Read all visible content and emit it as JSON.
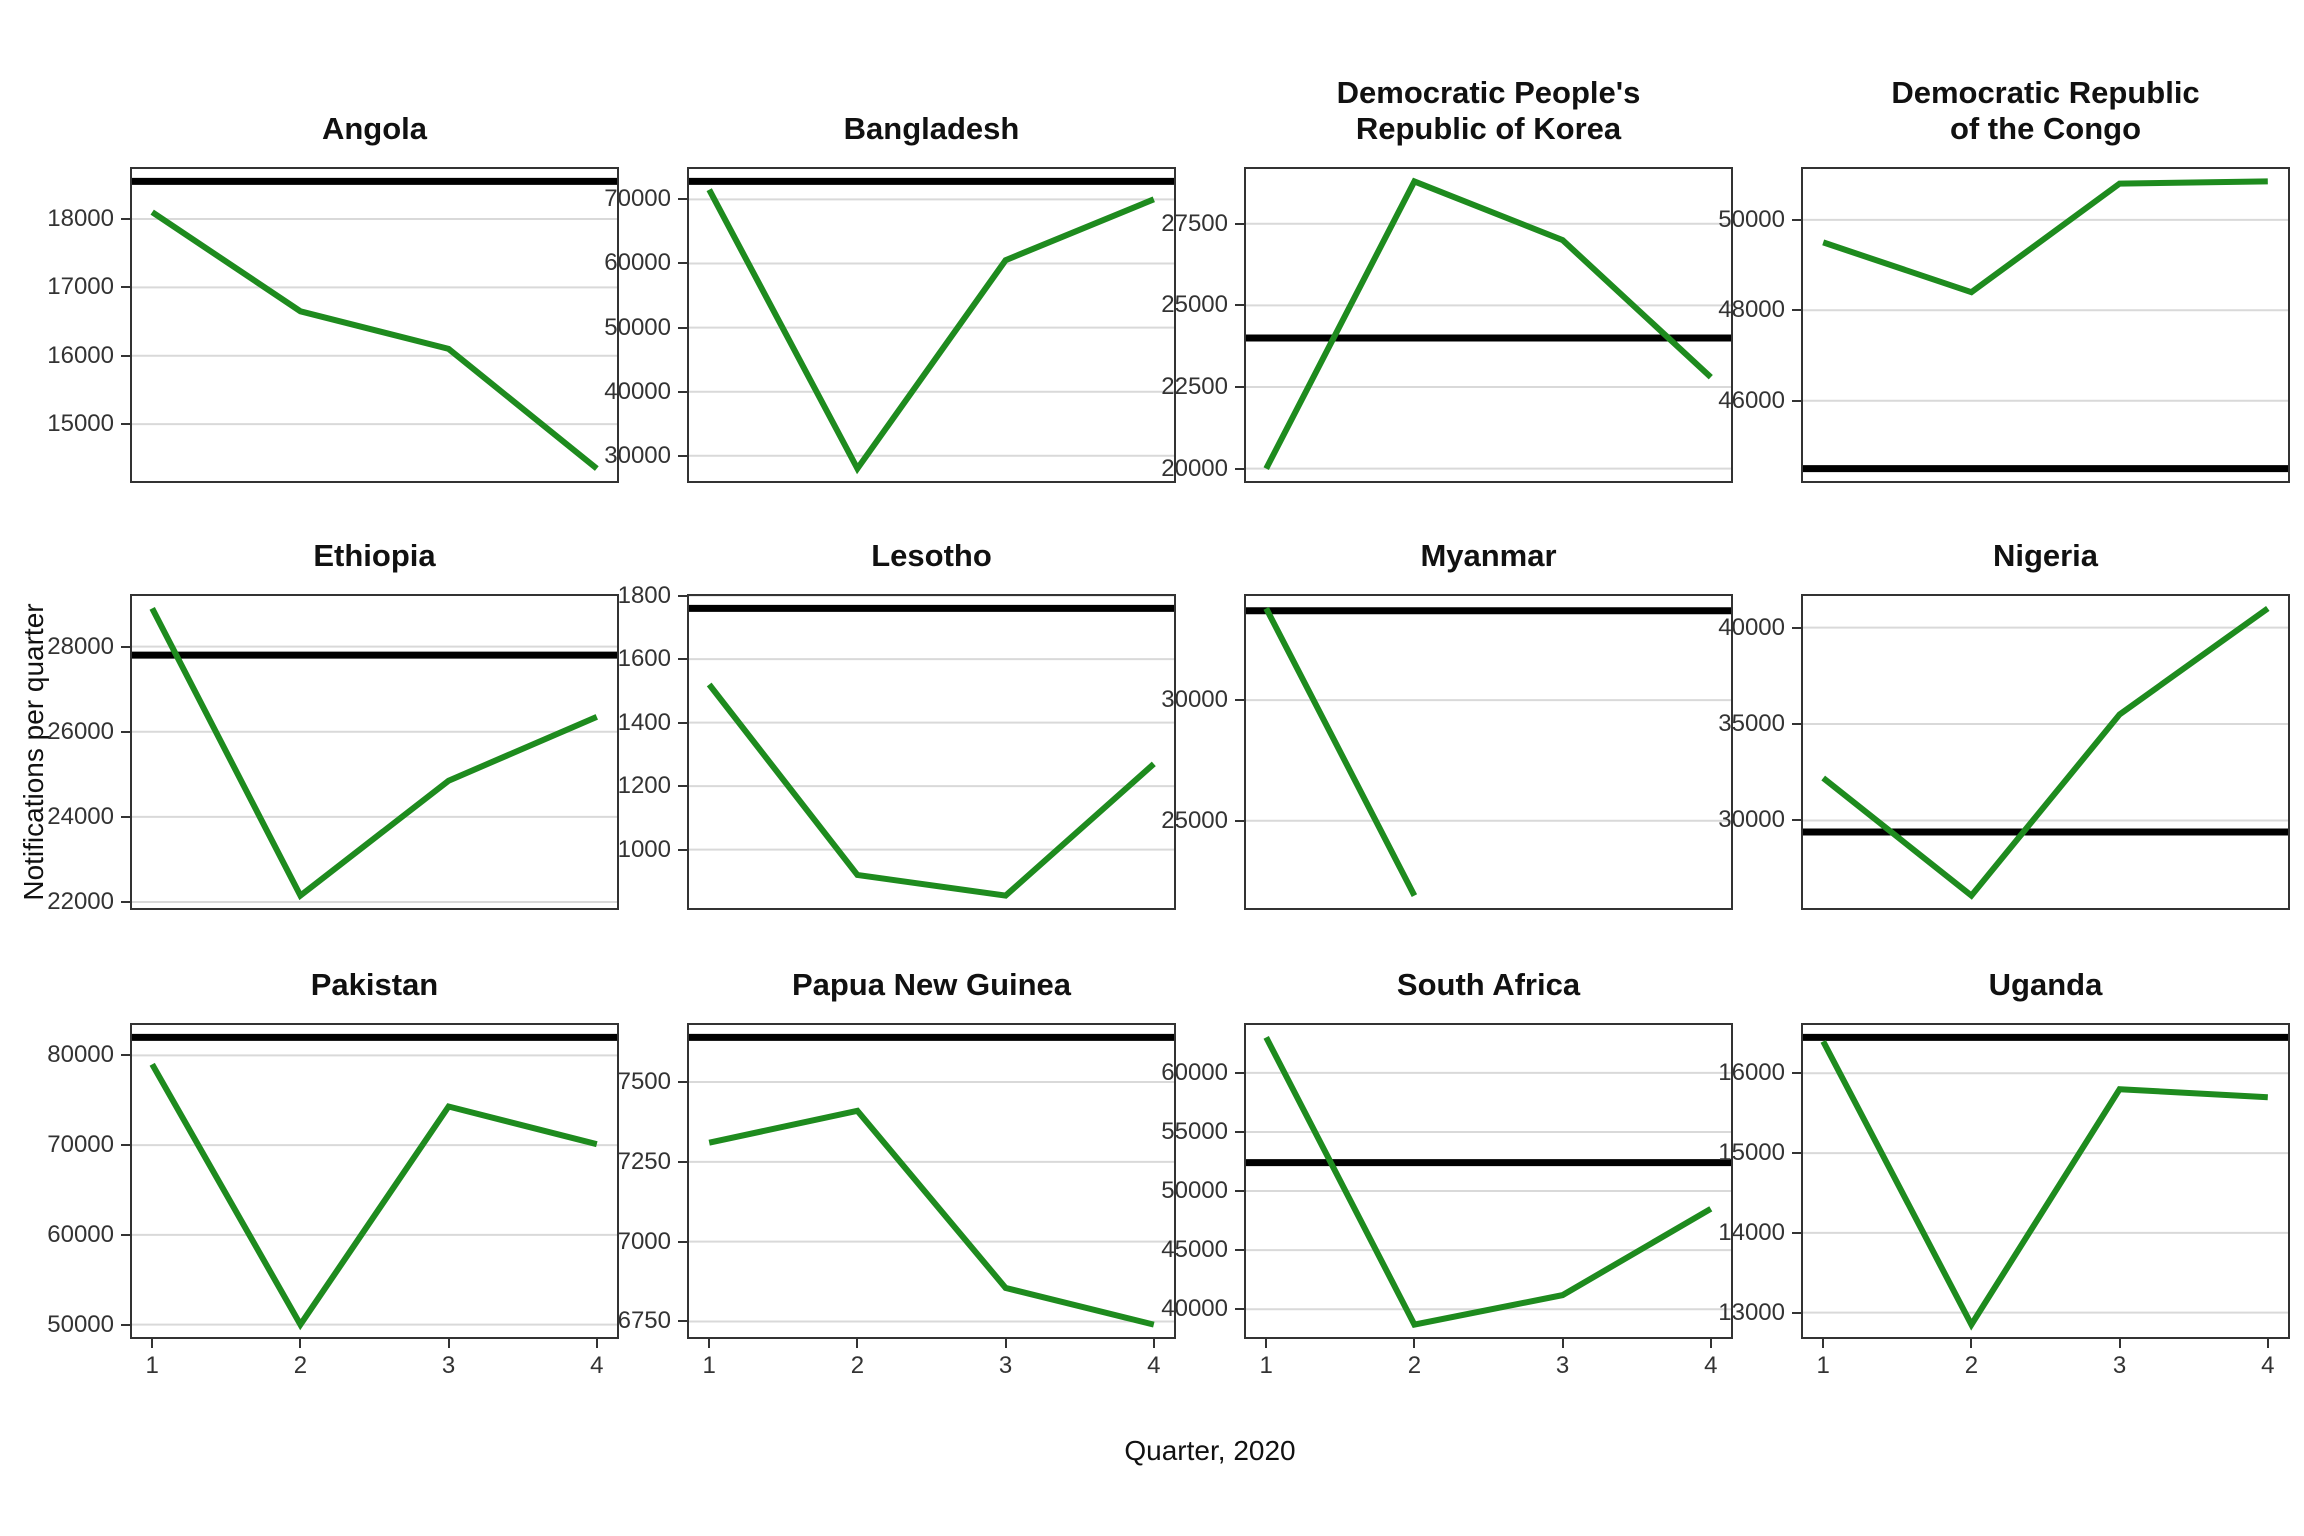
{
  "figure": {
    "y_axis_label": "Notifications per quarter",
    "x_axis_label": "Quarter, 2020",
    "x_tick_labels": [
      "1",
      "2",
      "3",
      "4"
    ],
    "colors": {
      "line": "#1e8b1e",
      "reference": "#000000",
      "grid": "#d9d9d9",
      "border": "#333333",
      "tick_text": "#333333",
      "title_text": "#111111"
    }
  },
  "chart_data": [
    {
      "type": "line",
      "title": "Angola",
      "x": [
        1,
        2,
        3,
        4
      ],
      "values": [
        18100,
        16650,
        16100,
        14350
      ],
      "reference_line": 18550,
      "yticks": [
        15000,
        16000,
        17000,
        18000
      ],
      "xlabel": "Quarter, 2020",
      "ylabel": "Notifications per quarter"
    },
    {
      "type": "line",
      "title": "Bangladesh",
      "x": [
        1,
        2,
        3,
        4
      ],
      "values": [
        71500,
        28000,
        60500,
        70000
      ],
      "reference_line": 72800,
      "yticks": [
        30000,
        40000,
        50000,
        60000,
        70000
      ],
      "xlabel": "Quarter, 2020",
      "ylabel": "Notifications per quarter"
    },
    {
      "type": "line",
      "title": "Democratic People's\nRepublic of Korea",
      "x": [
        1,
        2,
        3,
        4
      ],
      "values": [
        20000,
        28800,
        27000,
        22800
      ],
      "reference_line": 24000,
      "yticks": [
        20000,
        22500,
        25000,
        27500
      ],
      "xlabel": "Quarter, 2020",
      "ylabel": "Notifications per quarter"
    },
    {
      "type": "line",
      "title": "Democratic Republic\nof the Congo",
      "x": [
        1,
        2,
        3,
        4
      ],
      "values": [
        49500,
        48400,
        50800,
        50850
      ],
      "reference_line": 44500,
      "yticks": [
        46000,
        48000,
        50000
      ],
      "xlabel": "Quarter, 2020",
      "ylabel": "Notifications per quarter"
    },
    {
      "type": "line",
      "title": "Ethiopia",
      "x": [
        1,
        2,
        3,
        4
      ],
      "values": [
        28900,
        22150,
        24850,
        26350
      ],
      "reference_line": 27800,
      "yticks": [
        22000,
        24000,
        26000,
        28000
      ],
      "xlabel": "Quarter, 2020",
      "ylabel": "Notifications per quarter"
    },
    {
      "type": "line",
      "title": "Lesotho",
      "x": [
        1,
        2,
        3,
        4
      ],
      "values": [
        1520,
        920,
        855,
        1270
      ],
      "reference_line": 1760,
      "yticks": [
        1000,
        1200,
        1400,
        1600,
        1800
      ],
      "xlabel": "Quarter, 2020",
      "ylabel": "Notifications per quarter"
    },
    {
      "type": "line",
      "title": "Myanmar",
      "x": [
        1,
        2,
        3,
        4
      ],
      "values": [
        33800,
        21900,
        null,
        null
      ],
      "reference_line": 33700,
      "yticks": [
        25000,
        30000
      ],
      "xlabel": "Quarter, 2020",
      "ylabel": "Notifications per quarter"
    },
    {
      "type": "line",
      "title": "Nigeria",
      "x": [
        1,
        2,
        3,
        4
      ],
      "values": [
        32200,
        26100,
        35500,
        41000
      ],
      "reference_line": 29400,
      "yticks": [
        30000,
        35000,
        40000
      ],
      "xlabel": "Quarter, 2020",
      "ylabel": "Notifications per quarter"
    },
    {
      "type": "line",
      "title": "Pakistan",
      "x": [
        1,
        2,
        3,
        4
      ],
      "values": [
        79000,
        50000,
        74300,
        70100
      ],
      "reference_line": 82000,
      "yticks": [
        50000,
        60000,
        70000,
        80000
      ],
      "xlabel": "Quarter, 2020",
      "ylabel": "Notifications per quarter"
    },
    {
      "type": "line",
      "title": "Papua New Guinea",
      "x": [
        1,
        2,
        3,
        4
      ],
      "values": [
        7310,
        7410,
        6855,
        6740
      ],
      "reference_line": 7640,
      "yticks": [
        6750,
        7000,
        7250,
        7500
      ],
      "xlabel": "Quarter, 2020",
      "ylabel": "Notifications per quarter"
    },
    {
      "type": "line",
      "title": "South Africa",
      "x": [
        1,
        2,
        3,
        4
      ],
      "values": [
        63000,
        38700,
        41200,
        48500
      ],
      "reference_line": 52400,
      "yticks": [
        40000,
        45000,
        50000,
        55000,
        60000
      ],
      "xlabel": "Quarter, 2020",
      "ylabel": "Notifications per quarter"
    },
    {
      "type": "line",
      "title": "Uganda",
      "x": [
        1,
        2,
        3,
        4
      ],
      "values": [
        16400,
        12850,
        15800,
        15700
      ],
      "reference_line": 16450,
      "yticks": [
        13000,
        14000,
        15000,
        16000
      ],
      "xlabel": "Quarter, 2020",
      "ylabel": "Notifications per quarter"
    }
  ]
}
